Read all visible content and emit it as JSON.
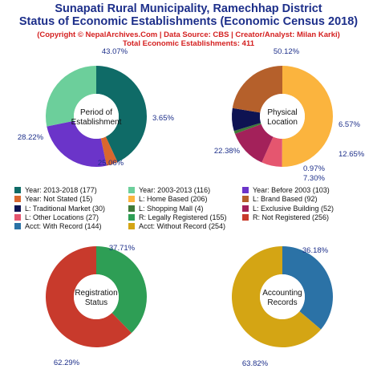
{
  "header": {
    "title_line1": "Sunapati Rural Municipality, Ramechhap District",
    "title_line2": "Status of Economic Establishments (Economic Census 2018)",
    "copyright": "(Copyright © NepalArchives.Com | Data Source: CBS | Creator/Analyst: Milan Karki)",
    "total": "Total Economic Establishments: 411"
  },
  "chart_data": [
    {
      "type": "pie",
      "title": "Period of Establishment",
      "center_lines": [
        "Period of",
        "Establishment"
      ],
      "slices": [
        {
          "label": "Year: 2013-2018",
          "value": 177,
          "pct": "43.07%",
          "color": "#0f6b67"
        },
        {
          "label": "Year: Not Stated",
          "value": 15,
          "pct": "3.65%",
          "color": "#d9672e"
        },
        {
          "label": "Year: Before 2003",
          "value": 103,
          "pct": "25.06%",
          "color": "#6b34c9"
        },
        {
          "label": "Year: 2003-2013",
          "value": 116,
          "pct": "28.22%",
          "color": "#6ccf9b"
        }
      ]
    },
    {
      "type": "pie",
      "title": "Physical Location",
      "center_lines": [
        "Physical",
        "Location"
      ],
      "slices": [
        {
          "label": "L: Home Based",
          "value": 206,
          "pct": "50.12%",
          "color": "#fbb43e"
        },
        {
          "label": "L: Other Locations",
          "value": 27,
          "pct": "6.57%",
          "color": "#e5566f"
        },
        {
          "label": "L: Exclusive Building",
          "value": 52,
          "pct": "12.65%",
          "color": "#a3215a"
        },
        {
          "label": "L: Shopping Mall",
          "value": 4,
          "pct": "0.97%",
          "color": "#3e7a38"
        },
        {
          "label": "L: Traditional Market",
          "value": 30,
          "pct": "7.30%",
          "color": "#0e1352"
        },
        {
          "label": "L: Brand Based",
          "value": 92,
          "pct": "22.38%",
          "color": "#b5602b"
        }
      ]
    },
    {
      "type": "pie",
      "title": "Registration Status",
      "center_lines": [
        "Registration",
        "Status"
      ],
      "slices": [
        {
          "label": "R: Legally Registered",
          "value": 155,
          "pct": "37.71%",
          "color": "#2e9e55"
        },
        {
          "label": "R: Not Registered",
          "value": 256,
          "pct": "62.29%",
          "color": "#c83a2c"
        }
      ]
    },
    {
      "type": "pie",
      "title": "Accounting Records",
      "center_lines": [
        "Accounting",
        "Records"
      ],
      "slices": [
        {
          "label": "Acct: With Record",
          "value": 144,
          "pct": "36.18%",
          "color": "#2b72a6"
        },
        {
          "label": "Acct: Without Record",
          "value": 254,
          "pct": "63.82%",
          "color": "#d4a514"
        }
      ]
    }
  ],
  "legend": [
    {
      "text": "Year: 2013-2018 (177)",
      "color": "#0f6b67"
    },
    {
      "text": "Year: 2003-2013 (116)",
      "color": "#6ccf9b"
    },
    {
      "text": "Year: Before 2003 (103)",
      "color": "#6b34c9"
    },
    {
      "text": "Year: Not Stated (15)",
      "color": "#d9672e"
    },
    {
      "text": "L: Home Based (206)",
      "color": "#fbb43e"
    },
    {
      "text": "L: Brand Based (92)",
      "color": "#b5602b"
    },
    {
      "text": "L: Traditional Market (30)",
      "color": "#0e1352"
    },
    {
      "text": "L: Shopping Mall (4)",
      "color": "#3e7a38"
    },
    {
      "text": "L: Exclusive Building (52)",
      "color": "#a3215a"
    },
    {
      "text": "L: Other Locations (27)",
      "color": "#e5566f"
    },
    {
      "text": "R: Legally Registered (155)",
      "color": "#2e9e55"
    },
    {
      "text": "R: Not Registered (256)",
      "color": "#c83a2c"
    },
    {
      "text": "Acct: With Record (144)",
      "color": "#2b72a6"
    },
    {
      "text": "Acct: Without Record (254)",
      "color": "#d4a514"
    }
  ]
}
